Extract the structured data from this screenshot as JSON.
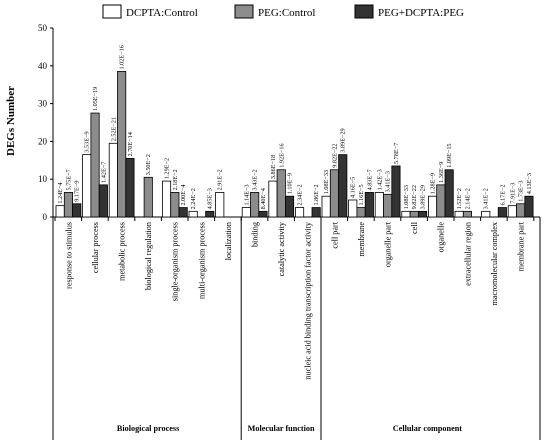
{
  "chart_data": {
    "type": "bar",
    "ylabel": "DEGs Number",
    "ylim": [
      0,
      50
    ],
    "yticks": [
      0,
      10,
      20,
      30,
      40,
      50
    ],
    "legend_position": "top",
    "categories": [
      "response to stimulus",
      "cellular process",
      "metabolic process",
      "biological regulation",
      "single-organism process",
      "multi-organism process",
      "localization",
      "binding",
      "catalytic activity",
      "nucleic acid binding transcription factor activity",
      "cell part",
      "membrane",
      "organelle part",
      "cell",
      "organelle",
      "extracellular region",
      "macromolecular complex",
      "membrane part"
    ],
    "groups": [
      {
        "name": "Biological process",
        "start": 0,
        "end": 6
      },
      {
        "name": "Molecular function",
        "start": 7,
        "end": 9
      },
      {
        "name": "Cellular component",
        "start": 10,
        "end": 17
      }
    ],
    "series": [
      {
        "name": "DCPTA:Control",
        "color": "#ffffff",
        "values": [
          3,
          16.5,
          19.5,
          0,
          9.5,
          1.5,
          6.5,
          2.5,
          9.5,
          2.5,
          5.5,
          4.5,
          6.5,
          1.5,
          5.5,
          1.5,
          1.5,
          3
        ],
        "labels": [
          "1.24E−4",
          "3.53E−9",
          "2.52E−21",
          "",
          "1.29E−2",
          "2.24E−2",
          "2.91E−2",
          "1.14E−3",
          "3.86E−18",
          "2.34E−2",
          "1.08E−33",
          "4.16E−5",
          "1.42E−3",
          "1.08E−33",
          "1.28E−9",
          "1.52E−2",
          "3.41E−2",
          "7.91E−3"
        ]
      },
      {
        "name": "PEG:Control",
        "color": "#8c8c8c",
        "values": [
          6.5,
          27.5,
          38.5,
          10.5,
          6.5,
          0,
          0,
          6.5,
          12.5,
          0,
          12.5,
          2.5,
          6,
          1.5,
          8.5,
          1.5,
          0,
          3.5
        ],
        "labels": [
          "5.75E−7",
          "1.05E−19",
          "1.02E−16",
          "3.50E−2",
          "2.18E−2",
          "",
          "",
          "3.43E−2",
          "1.92E−16",
          "",
          "9.82E−22",
          "1.16E−5",
          "3.41E−3",
          "9.82E−22",
          "1.36E−9",
          "2.14E−2",
          "",
          "1.73E−3"
        ]
      },
      {
        "name": "PEG+DCPTA:PEG",
        "color": "#333333",
        "values": [
          3.5,
          8.5,
          15.5,
          0,
          2.5,
          1.5,
          0,
          1.5,
          5.5,
          2.5,
          16.5,
          6.5,
          13.5,
          1.5,
          12.5,
          0,
          2.5,
          5.5
        ],
        "labels": [
          "9.17E−9",
          "1.42E−7",
          "2.70E−14",
          "",
          "2.00E−4",
          "4.85E−3",
          "",
          "8.40E−4",
          "1.10E−9",
          "1.86E−2",
          "3.89E−29",
          "4.83E−7",
          "5.78E−7",
          "3.89E−29",
          "1.09E−15",
          "",
          "6.17E−2",
          "4.13E−3"
        ]
      }
    ]
  }
}
